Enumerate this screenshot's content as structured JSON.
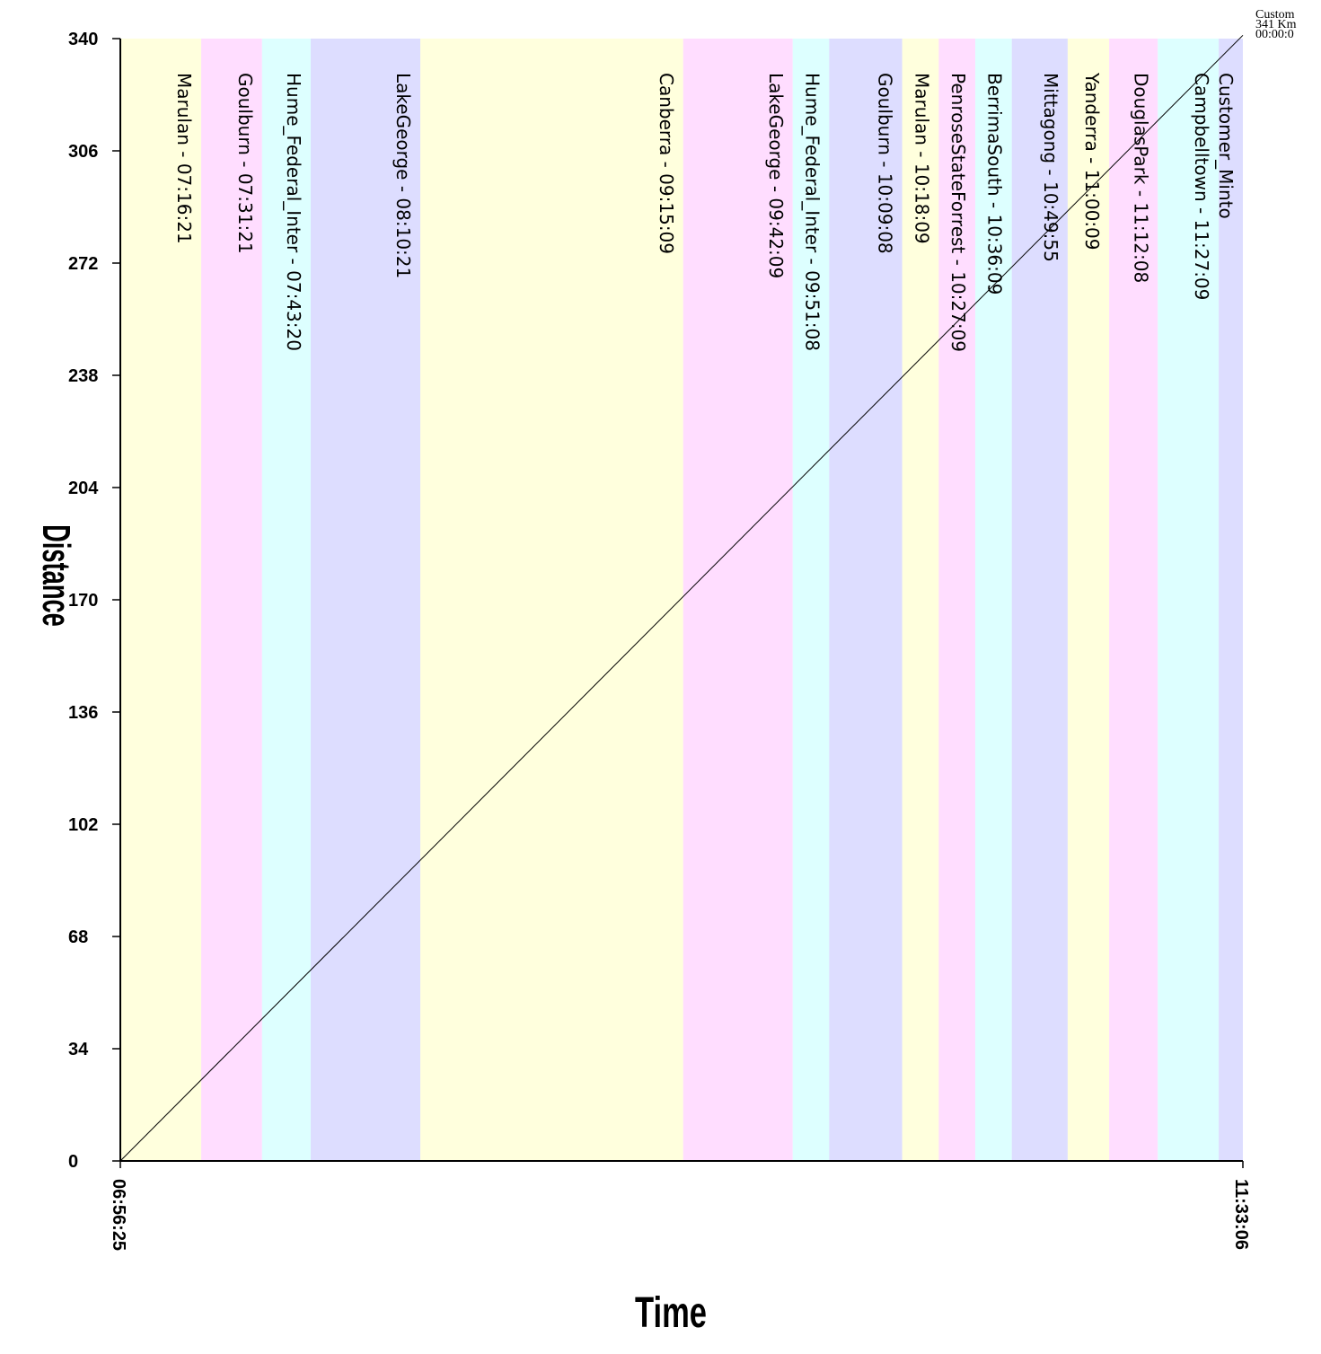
{
  "chart_data": {
    "type": "line",
    "xlabel": "Time",
    "ylabel": "Distance",
    "xlim": [
      "06:56:25",
      "11:33:06"
    ],
    "ylim": [
      0,
      340
    ],
    "yticks": [
      0,
      34,
      68,
      102,
      136,
      170,
      204,
      238,
      272,
      306,
      340
    ],
    "xticks": [
      "06:56:25",
      "11:33:06"
    ],
    "grid": false,
    "series": [
      {
        "x": [
          "06:56:25",
          "11:33:06"
        ],
        "y": [
          0,
          341
        ]
      }
    ],
    "stops": [
      {
        "label": "Marulan - 07:16:21",
        "start": "06:56:25",
        "end": "07:16:21",
        "color": "#ffffdd"
      },
      {
        "label": "Goulburn - 07:31:21",
        "start": "07:16:21",
        "end": "07:31:21",
        "color": "#ffddff"
      },
      {
        "label": "Hume_Federal_Inter - 07:43:20",
        "start": "07:31:21",
        "end": "07:43:20",
        "color": "#ddffff"
      },
      {
        "label": "LakeGeorge - 08:10:21",
        "start": "07:43:20",
        "end": "08:10:21",
        "color": "#ddddff"
      },
      {
        "label": "Canberra - 09:15:09",
        "start": "08:10:21",
        "end": "09:15:09",
        "color": "#ffffdd"
      },
      {
        "label": "LakeGeorge - 09:42:09",
        "start": "09:15:09",
        "end": "09:42:09",
        "color": "#ffddff"
      },
      {
        "label": "Hume_Federal_Inter - 09:51:08",
        "start": "09:42:09",
        "end": "09:51:08",
        "color": "#ddffff"
      },
      {
        "label": "Goulburn - 10:09:08",
        "start": "09:51:08",
        "end": "10:09:08",
        "color": "#ddddff"
      },
      {
        "label": "Marulan - 10:18:09",
        "start": "10:09:08",
        "end": "10:18:09",
        "color": "#ffffdd"
      },
      {
        "label": "PenroseStateForrest - 10:27:09",
        "start": "10:18:09",
        "end": "10:27:09",
        "color": "#ffddff"
      },
      {
        "label": "BerrimaSouth - 10:36:09",
        "start": "10:27:09",
        "end": "10:36:09",
        "color": "#ddffff"
      },
      {
        "label": "Mittagong - 10:49:55",
        "start": "10:36:09",
        "end": "10:49:55",
        "color": "#ddddff"
      },
      {
        "label": "Yanderra - 11:00:09",
        "start": "10:49:55",
        "end": "11:00:09",
        "color": "#ffffdd"
      },
      {
        "label": "DouglasPark - 11:12:08",
        "start": "11:00:09",
        "end": "11:12:08",
        "color": "#ffddff"
      },
      {
        "label": "Campbelltown - 11:27:09",
        "start": "11:12:08",
        "end": "11:27:09",
        "color": "#ddffff"
      },
      {
        "label": "Customer_Minto",
        "start": "11:27:09",
        "end": "11:33:06",
        "color": "#ddddff"
      }
    ],
    "corner_annotation": [
      "Custom",
      "341 Km",
      "00:00:0"
    ]
  }
}
